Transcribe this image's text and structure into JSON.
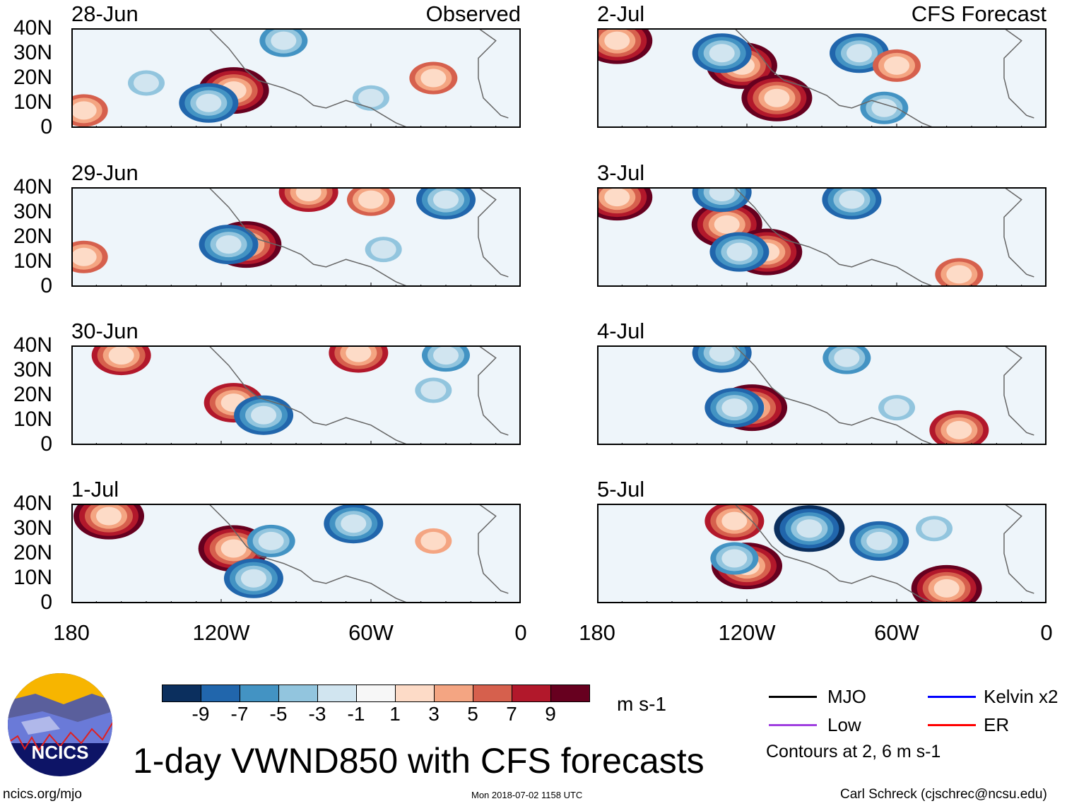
{
  "header": {
    "observed_label": "Observed",
    "forecast_label": "CFS Forecast"
  },
  "panels": [
    {
      "date": "28-Jun",
      "column": "observed"
    },
    {
      "date": "29-Jun",
      "column": "observed"
    },
    {
      "date": "30-Jun",
      "column": "observed"
    },
    {
      "date": "1-Jul",
      "column": "observed"
    },
    {
      "date": "2-Jul",
      "column": "forecast"
    },
    {
      "date": "3-Jul",
      "column": "forecast"
    },
    {
      "date": "4-Jul",
      "column": "forecast"
    },
    {
      "date": "5-Jul",
      "column": "forecast"
    }
  ],
  "lat_ticks": [
    "40N",
    "30N",
    "20N",
    "10N",
    "0"
  ],
  "lon_ticks": [
    "180",
    "120W",
    "60W",
    "0"
  ],
  "colorbar": {
    "colors": [
      "#0b2f5e",
      "#2166ac",
      "#4393c3",
      "#92c5de",
      "#d1e5f0",
      "#f7f7f7",
      "#fddbc7",
      "#f4a582",
      "#d6604d",
      "#b2182b",
      "#67001f"
    ],
    "labels": [
      "-9",
      "-7",
      "-5",
      "-3",
      "-1",
      "1",
      "3",
      "5",
      "7",
      "9"
    ],
    "units": "m s-1"
  },
  "legend": {
    "items": [
      {
        "label": "MJO",
        "color": "#000000"
      },
      {
        "label": "Kelvin x2",
        "color": "#0000ff"
      },
      {
        "label": "Low",
        "color": "#a040e0"
      },
      {
        "label": "ER",
        "color": "#ff0000"
      }
    ],
    "contours_note": "Contours at 2, 6 m s-1"
  },
  "title": "1-day VWND850 with CFS forecasts",
  "logo_text": "NCICS",
  "footer": {
    "url": "ncics.org/mjo",
    "timestamp": "Mon 2018-07-02 1158 UTC",
    "author": "Carl Schreck (cjschrec@ncsu.edu)"
  },
  "chart_data": {
    "type": "heatmap",
    "variable": "850-hPa meridional wind anomaly",
    "units": "m s-1",
    "xlim": [
      180,
      0
    ],
    "x_units": "degrees W",
    "ylim": [
      0,
      40
    ],
    "y_units": "degrees N",
    "anomalies": [
      [
        {
          "lon": 115,
          "lat": 15,
          "v": 10
        },
        {
          "lon": 125,
          "lat": 10,
          "v": -7
        },
        {
          "lon": 175,
          "lat": 7,
          "v": 6
        },
        {
          "lon": 95,
          "lat": 35,
          "v": -5
        },
        {
          "lon": 35,
          "lat": 20,
          "v": 5
        },
        {
          "lon": 60,
          "lat": 12,
          "v": -4
        },
        {
          "lon": 150,
          "lat": 18,
          "v": -3
        }
      ],
      [
        {
          "lon": 110,
          "lat": 17,
          "v": 9
        },
        {
          "lon": 117,
          "lat": 17,
          "v": -7
        },
        {
          "lon": 175,
          "lat": 12,
          "v": 6
        },
        {
          "lon": 30,
          "lat": 35,
          "v": -7
        },
        {
          "lon": 85,
          "lat": 38,
          "v": 8
        },
        {
          "lon": 60,
          "lat": 35,
          "v": 6
        },
        {
          "lon": 55,
          "lat": 15,
          "v": -4
        }
      ],
      [
        {
          "lon": 115,
          "lat": 17,
          "v": 8
        },
        {
          "lon": 103,
          "lat": 12,
          "v": -7
        },
        {
          "lon": 160,
          "lat": 36,
          "v": 8
        },
        {
          "lon": 30,
          "lat": 36,
          "v": -6
        },
        {
          "lon": 65,
          "lat": 37,
          "v": 7
        },
        {
          "lon": 35,
          "lat": 22,
          "v": -4
        }
      ],
      [
        {
          "lon": 115,
          "lat": 22,
          "v": 9
        },
        {
          "lon": 107,
          "lat": 10,
          "v": -7
        },
        {
          "lon": 165,
          "lat": 35,
          "v": 9
        },
        {
          "lon": 67,
          "lat": 32,
          "v": -8
        },
        {
          "lon": 100,
          "lat": 25,
          "v": -5
        },
        {
          "lon": 35,
          "lat": 25,
          "v": 4
        }
      ],
      [
        {
          "lon": 172,
          "lat": 35,
          "v": 10
        },
        {
          "lon": 122,
          "lat": 25,
          "v": 10
        },
        {
          "lon": 108,
          "lat": 12,
          "v": 9
        },
        {
          "lon": 130,
          "lat": 30,
          "v": -7
        },
        {
          "lon": 75,
          "lat": 30,
          "v": -8
        },
        {
          "lon": 65,
          "lat": 8,
          "v": -5
        },
        {
          "lon": 60,
          "lat": 25,
          "v": 5
        }
      ],
      [
        {
          "lon": 172,
          "lat": 36,
          "v": 9
        },
        {
          "lon": 128,
          "lat": 25,
          "v": 9
        },
        {
          "lon": 112,
          "lat": 14,
          "v": 9
        },
        {
          "lon": 123,
          "lat": 14,
          "v": -8
        },
        {
          "lon": 130,
          "lat": 38,
          "v": -8
        },
        {
          "lon": 78,
          "lat": 35,
          "v": -7
        },
        {
          "lon": 35,
          "lat": 5,
          "v": 6
        }
      ],
      [
        {
          "lon": 118,
          "lat": 15,
          "v": 10
        },
        {
          "lon": 125,
          "lat": 15,
          "v": -8
        },
        {
          "lon": 130,
          "lat": 37,
          "v": -7
        },
        {
          "lon": 35,
          "lat": 6,
          "v": 8
        },
        {
          "lon": 80,
          "lat": 35,
          "v": -6
        },
        {
          "lon": 60,
          "lat": 15,
          "v": -4
        }
      ],
      [
        {
          "lon": 120,
          "lat": 15,
          "v": 10
        },
        {
          "lon": 125,
          "lat": 33,
          "v": 7
        },
        {
          "lon": 95,
          "lat": 30,
          "v": -9
        },
        {
          "lon": 40,
          "lat": 6,
          "v": 9
        },
        {
          "lon": 67,
          "lat": 25,
          "v": -7
        },
        {
          "lon": 125,
          "lat": 18,
          "v": -5
        },
        {
          "lon": 45,
          "lat": 30,
          "v": -4
        }
      ]
    ]
  }
}
